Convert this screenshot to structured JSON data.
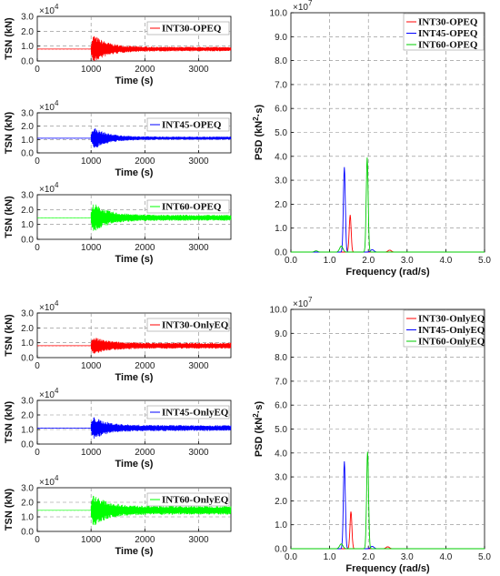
{
  "chart_data": [
    {
      "id": "ts1",
      "type": "line",
      "ylabel": "TSN (kN)",
      "xlabel": "Time (s)",
      "multiplier": "×10",
      "multiplier_exp": "4",
      "xlim": [
        0,
        3600
      ],
      "ylim": [
        0,
        3
      ],
      "xticks": [
        "0",
        "1000",
        "2000",
        "3000"
      ],
      "yticks": [
        "0.0",
        "1.0",
        "2.0",
        "3.0"
      ],
      "legend": "INT30-OPEQ",
      "color": "#ff0000",
      "event_t": 1000,
      "base": 0.8,
      "peak": 1.15,
      "settle": 0.15,
      "grid": true
    },
    {
      "id": "ts2",
      "type": "line",
      "ylabel": "TSN (kN)",
      "xlabel": "Time (s)",
      "multiplier": "×10",
      "multiplier_exp": "4",
      "xlim": [
        0,
        3600
      ],
      "ylim": [
        0,
        3
      ],
      "xticks": [
        "0",
        "1000",
        "2000",
        "3000"
      ],
      "yticks": [
        "0.0",
        "1.0",
        "2.0",
        "3.0"
      ],
      "legend": "INT45-OPEQ",
      "color": "#0000ff",
      "event_t": 1000,
      "base": 1.1,
      "peak": 1.0,
      "settle": 0.12,
      "grid": true
    },
    {
      "id": "ts3",
      "type": "line",
      "ylabel": "TSN (kN)",
      "xlabel": "Time (s)",
      "multiplier": "×10",
      "multiplier_exp": "4",
      "xlim": [
        0,
        3600
      ],
      "ylim": [
        0,
        3
      ],
      "xticks": [
        "0",
        "1000",
        "2000",
        "3000"
      ],
      "yticks": [
        "0.0",
        "1.0",
        "2.0",
        "3.0"
      ],
      "legend": "INT60-OPEQ",
      "color": "#00ff00",
      "event_t": 1000,
      "base": 1.45,
      "peak": 1.2,
      "settle": 0.2,
      "grid": true
    },
    {
      "id": "ts4",
      "type": "line",
      "ylabel": "TSN (kN)",
      "xlabel": "Time (s)",
      "multiplier": "×10",
      "multiplier_exp": "4",
      "xlim": [
        0,
        3600
      ],
      "ylim": [
        0,
        3
      ],
      "xticks": [
        "0",
        "1000",
        "2000",
        "3000"
      ],
      "yticks": [
        "0.0",
        "1.0",
        "2.0",
        "3.0"
      ],
      "legend": "INT30-OnlyEQ",
      "color": "#ff0000",
      "event_t": 1000,
      "base": 0.8,
      "peak": 0.7,
      "settle": 0.2,
      "grid": true
    },
    {
      "id": "ts5",
      "type": "line",
      "ylabel": "TSN (kN)",
      "xlabel": "Time (s)",
      "multiplier": "×10",
      "multiplier_exp": "4",
      "xlim": [
        0,
        3600
      ],
      "ylim": [
        0,
        3
      ],
      "xticks": [
        "0",
        "1000",
        "2000",
        "3000"
      ],
      "yticks": [
        "0.0",
        "1.0",
        "2.0",
        "3.0"
      ],
      "legend": "INT45-OnlyEQ",
      "color": "#0000ff",
      "event_t": 1000,
      "base": 1.1,
      "peak": 0.9,
      "settle": 0.2,
      "grid": true
    },
    {
      "id": "ts6",
      "type": "line",
      "ylabel": "TSN (kN)",
      "xlabel": "Time (s)",
      "multiplier": "×10",
      "multiplier_exp": "4",
      "xlim": [
        0,
        3600
      ],
      "ylim": [
        0,
        3
      ],
      "xticks": [
        "0",
        "1000",
        "2000",
        "3000"
      ],
      "yticks": [
        "0.0",
        "1.0",
        "2.0",
        "3.0"
      ],
      "legend": "INT60-OnlyEQ",
      "color": "#00ff00",
      "event_t": 1000,
      "base": 1.45,
      "peak": 1.3,
      "settle": 0.3,
      "grid": true
    },
    {
      "id": "psd1",
      "type": "line",
      "ylabel": "PSD (kN²·s)",
      "ylabel_main": "PSD (kN",
      "ylabel_sup": "2",
      "ylabel_tail": "·s)",
      "xlabel": "Frequency (rad/s)",
      "multiplier": "×10",
      "multiplier_exp": "7",
      "xlim": [
        0,
        5
      ],
      "ylim": [
        0,
        10
      ],
      "xticks": [
        "0.0",
        "1.0",
        "2.0",
        "3.0",
        "4.0",
        "5.0"
      ],
      "yticks": [
        "0.0",
        "1.0",
        "2.0",
        "3.0",
        "4.0",
        "5.0",
        "6.0",
        "7.0",
        "8.0",
        "9.0",
        "10.0"
      ],
      "legend_placement": "top-right",
      "grid": true,
      "series": [
        {
          "name": "INT30-OPEQ",
          "color": "#ff0000",
          "peaks": [
            [
              1.53,
              1.55
            ],
            [
              2.55,
              0.08
            ]
          ]
        },
        {
          "name": "INT45-OPEQ",
          "color": "#0000ff",
          "peaks": [
            [
              1.38,
              3.55
            ],
            [
              2.1,
              0.1
            ]
          ]
        },
        {
          "name": "INT60-OPEQ",
          "color": "#00cc00",
          "peaks": [
            [
              1.97,
              3.95
            ],
            [
              1.3,
              0.25
            ],
            [
              0.65,
              0.05
            ]
          ]
        }
      ]
    },
    {
      "id": "psd2",
      "type": "line",
      "ylabel": "PSD (kN²·s)",
      "ylabel_main": "PSD (kN",
      "ylabel_sup": "2",
      "ylabel_tail": "·s)",
      "xlabel": "Frequency (rad/s)",
      "multiplier": "×10",
      "multiplier_exp": "7",
      "xlim": [
        0,
        5
      ],
      "ylim": [
        0,
        10
      ],
      "xticks": [
        "0.0",
        "1.0",
        "2.0",
        "3.0",
        "4.0",
        "5.0"
      ],
      "yticks": [
        "0.0",
        "1.0",
        "2.0",
        "3.0",
        "4.0",
        "5.0",
        "6.0",
        "7.0",
        "8.0",
        "9.0",
        "10.0"
      ],
      "legend_placement": "top-right",
      "grid": true,
      "series": [
        {
          "name": "INT30-OnlyEQ",
          "color": "#ff0000",
          "peaks": [
            [
              1.55,
              1.55
            ],
            [
              2.5,
              0.08
            ]
          ]
        },
        {
          "name": "INT45-OnlyEQ",
          "color": "#0000ff",
          "peaks": [
            [
              1.38,
              3.65
            ],
            [
              2.1,
              0.1
            ]
          ]
        },
        {
          "name": "INT60-OnlyEQ",
          "color": "#00cc00",
          "peaks": [
            [
              1.98,
              4.05
            ],
            [
              1.3,
              0.2
            ]
          ]
        }
      ]
    }
  ]
}
